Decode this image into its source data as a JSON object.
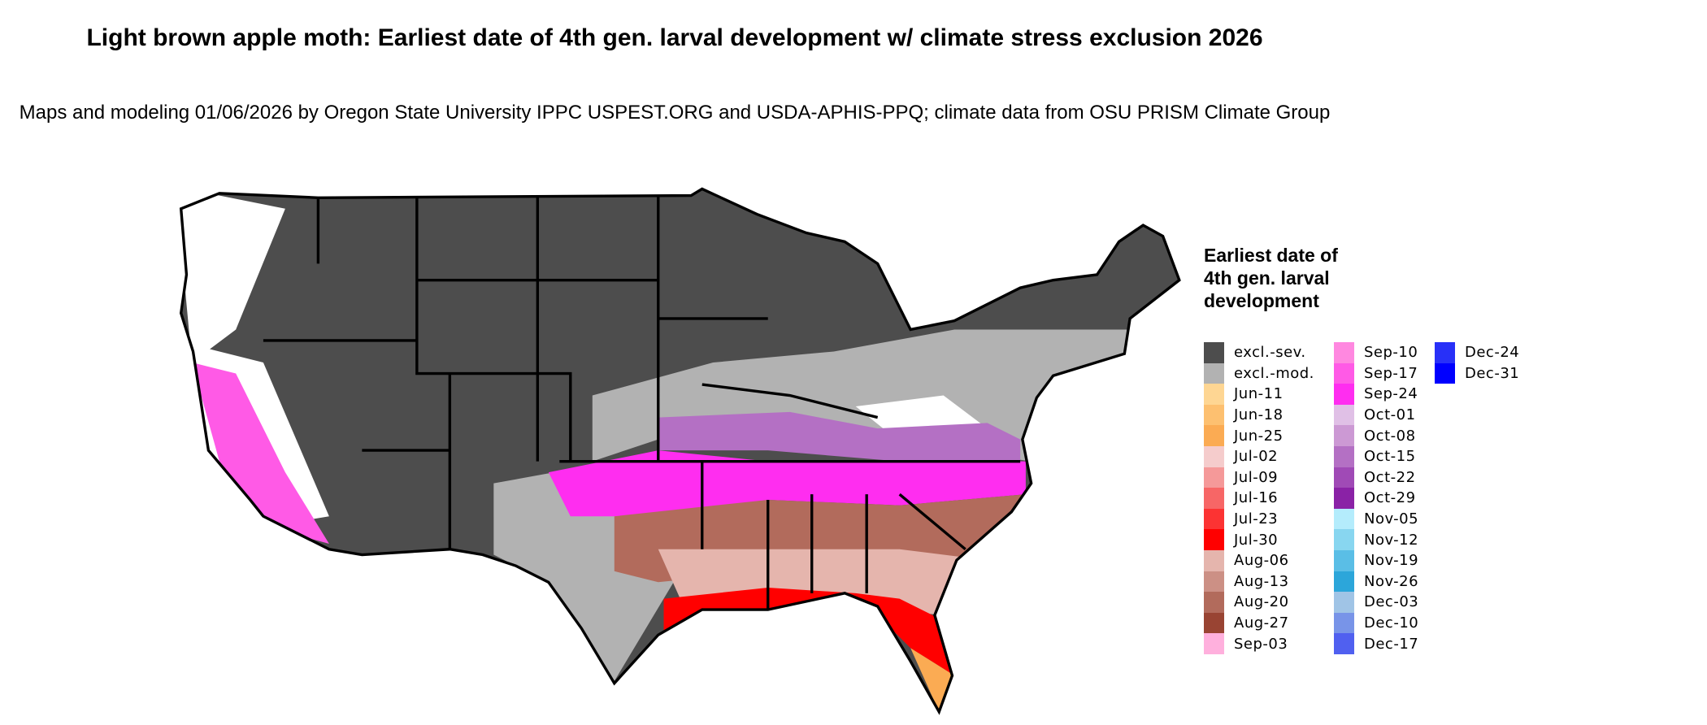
{
  "title": "Light brown apple moth: Earliest date of 4th gen. larval development w/ climate stress exclusion 2026",
  "subtitle": "Maps and modeling 01/06/2026 by Oregon State University IPPC USPEST.ORG and USDA-APHIS-PPQ; climate data from OSU PRISM Climate Group",
  "legend": {
    "title": "Earliest date of 4th gen. larval development",
    "items": [
      {
        "label": "excl.-sev.",
        "color": "#4d4d4d"
      },
      {
        "label": "excl.-mod.",
        "color": "#b2b2b2"
      },
      {
        "label": "Jun-11",
        "color": "#fed693"
      },
      {
        "label": "Jun-18",
        "color": "#fdc070"
      },
      {
        "label": "Jun-25",
        "color": "#fbab53"
      },
      {
        "label": "Jul-02",
        "color": "#f5cccc"
      },
      {
        "label": "Jul-09",
        "color": "#f59999"
      },
      {
        "label": "Jul-16",
        "color": "#f76666"
      },
      {
        "label": "Jul-23",
        "color": "#fc3333"
      },
      {
        "label": "Jul-30",
        "color": "#ff0000"
      },
      {
        "label": "Aug-06",
        "color": "#e5b5ad"
      },
      {
        "label": "Aug-13",
        "color": "#cc9085"
      },
      {
        "label": "Aug-20",
        "color": "#b26b5c"
      },
      {
        "label": "Aug-27",
        "color": "#994433"
      },
      {
        "label": "Sep-03",
        "color": "#ffb0dd"
      },
      {
        "label": "Sep-10",
        "color": "#ff88e0"
      },
      {
        "label": "Sep-17",
        "color": "#ff5ae6"
      },
      {
        "label": "Sep-24",
        "color": "#ff2df0"
      },
      {
        "label": "Oct-01",
        "color": "#e0c0e6"
      },
      {
        "label": "Oct-08",
        "color": "#cc99d4"
      },
      {
        "label": "Oct-15",
        "color": "#b470c4"
      },
      {
        "label": "Oct-22",
        "color": "#a04ab6"
      },
      {
        "label": "Oct-29",
        "color": "#8a22a6"
      },
      {
        "label": "Nov-05",
        "color": "#b4ecfc"
      },
      {
        "label": "Nov-12",
        "color": "#88d6f0"
      },
      {
        "label": "Nov-19",
        "color": "#5abee6"
      },
      {
        "label": "Nov-26",
        "color": "#2ca6da"
      },
      {
        "label": "Dec-03",
        "color": "#a0c4e6"
      },
      {
        "label": "Dec-10",
        "color": "#7894e8"
      },
      {
        "label": "Dec-17",
        "color": "#5060f0"
      },
      {
        "label": "Dec-24",
        "color": "#2830f8"
      },
      {
        "label": "Dec-31",
        "color": "#0000ff"
      }
    ]
  }
}
